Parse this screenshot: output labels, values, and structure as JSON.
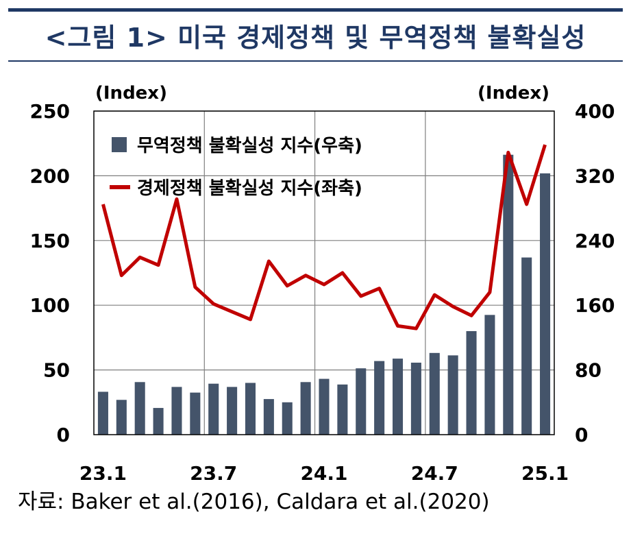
{
  "title": "<그림 1> 미국 경제정책 및 무역정책 불확실성",
  "source": "자료: Baker et al.(2016), Caldara et al.(2020)",
  "colors": {
    "bar": "#44546a",
    "line": "#c00000",
    "frame": "#1f3864"
  },
  "chart_data": {
    "type": "bar+line",
    "x": [
      "23.1",
      "23.2",
      "23.3",
      "23.4",
      "23.5",
      "23.6",
      "23.7",
      "23.8",
      "23.9",
      "23.10",
      "23.11",
      "23.12",
      "24.1",
      "24.2",
      "24.3",
      "24.4",
      "24.5",
      "24.6",
      "24.7",
      "24.8",
      "24.9",
      "24.10",
      "24.11",
      "24.12",
      "25.1"
    ],
    "x_tick_labels": [
      "23.1",
      "23.7",
      "24.1",
      "24.7",
      "25.1"
    ],
    "left_axis": {
      "unit": "(Index)",
      "ylim": [
        0,
        250
      ],
      "ticks": [
        0,
        50,
        100,
        150,
        200,
        250
      ]
    },
    "right_axis": {
      "unit": "(Index)",
      "ylim": [
        0,
        400
      ],
      "ticks": [
        0,
        80,
        160,
        240,
        320,
        400
      ]
    },
    "series": [
      {
        "name": "무역정책 불확실성 지수(우축)",
        "type": "bar",
        "axis": "right",
        "values": [
          53,
          43,
          65,
          33,
          59,
          52,
          63,
          59,
          64,
          44,
          40,
          65,
          69,
          62,
          82,
          91,
          94,
          89,
          101,
          98,
          128,
          148,
          346,
          219,
          323
        ]
      },
      {
        "name": "경제정책 불확실성 지수(좌축)",
        "type": "line",
        "axis": "left",
        "values": [
          178,
          123,
          137,
          131,
          182,
          114,
          101,
          95,
          89,
          134,
          115,
          123,
          116,
          125,
          107,
          113,
          84,
          82,
          108,
          99,
          92,
          110,
          218,
          178,
          224
        ]
      }
    ],
    "grid": "horizontal",
    "legend": "top-left"
  }
}
